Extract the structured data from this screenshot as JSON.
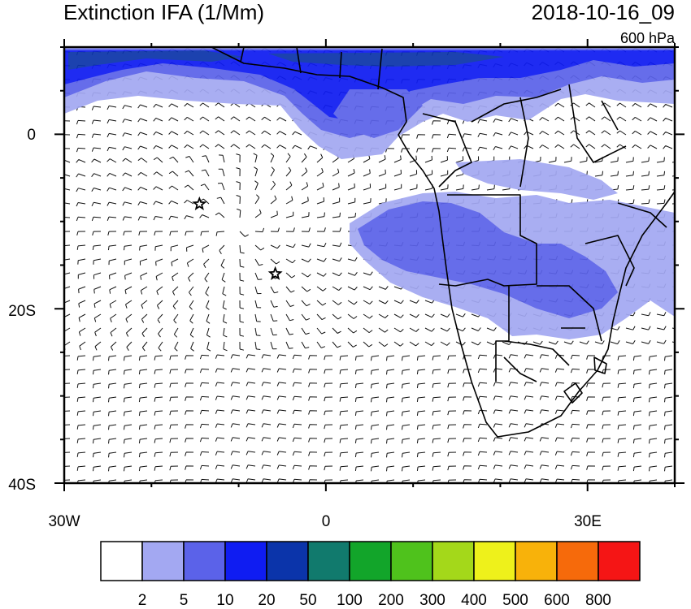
{
  "header": {
    "title": "Extinction IFA (1/Mm)",
    "datetime": "2018-10-16_09",
    "level": "600 hPa"
  },
  "axes": {
    "x_ticks": [
      {
        "value": -30,
        "label": "30W"
      },
      {
        "value": 0,
        "label": "0"
      },
      {
        "value": 30,
        "label": "30E"
      }
    ],
    "y_ticks": [
      {
        "value": 0,
        "label": "0"
      },
      {
        "value": -20,
        "label": "20S"
      },
      {
        "value": -40,
        "label": "40S"
      }
    ],
    "lon_range": [
      -30,
      40
    ],
    "lat_range": [
      -40,
      10
    ]
  },
  "markers": [
    {
      "name": "star",
      "lon": -14.5,
      "lat": -8
    },
    {
      "name": "star",
      "lon": -5.8,
      "lat": -16
    }
  ],
  "colorbar": {
    "labels": [
      "2",
      "5",
      "10",
      "20",
      "50",
      "100",
      "200",
      "300",
      "400",
      "500",
      "600",
      "800"
    ],
    "colors": [
      "#ffffff",
      "#a3a8f2",
      "#5b62e9",
      "#0f1cf2",
      "#0b34aa",
      "#117a6d",
      "#12a52a",
      "#4fc21c",
      "#a4d81a",
      "#eef11b",
      "#f8b20a",
      "#f66a0b",
      "#f51515"
    ]
  }
}
